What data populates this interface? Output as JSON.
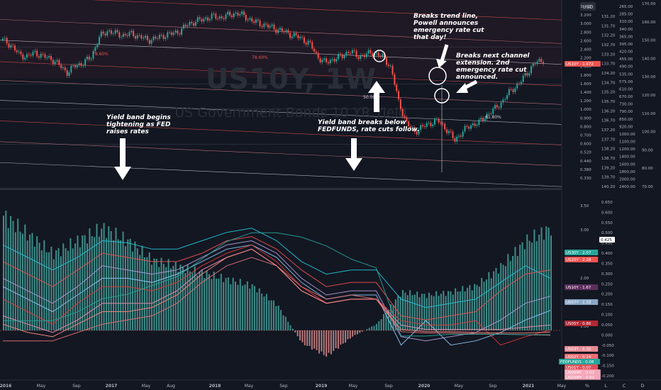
{
  "watermark": {
    "symbol": "US10Y, 1W",
    "description": "US Government Bonds 10 YR Yield"
  },
  "currency_label": "USD",
  "axis_buttons": [
    "%",
    "L",
    "C",
    "D"
  ],
  "colors": {
    "background": "#131722",
    "up": "#26a69a",
    "down": "#ef5350",
    "channel": "#ef5350",
    "fib": "#7e8597"
  },
  "annotations": {
    "band_tightening": [
      "Yield band begins",
      "tightening as FED",
      "raises rates"
    ],
    "band_breaks": [
      "Yield band breaks below",
      "FEDFUNDS, rate cuts follow."
    ],
    "trend_break": [
      "Breaks trend line,",
      "Powell announces",
      "emergency rate cut",
      "that day!"
    ],
    "channel_break": [
      "Breaks next channel",
      "extension. 2nd",
      "emergency rate cut",
      "announced."
    ]
  },
  "fib_labels": {
    "a": "78.60%",
    "b": "50.00%",
    "c": "61.80%"
  },
  "price_scale_upper": {
    "col1": [
      "3.400",
      "3.200",
      "3.000",
      "2.800",
      "2.600",
      "2.400",
      "2.200",
      "2.000",
      "1.800",
      "1.600",
      "1.400",
      "1.200",
      "1.000",
      "0.900",
      "0.800",
      "0.700",
      "0.600",
      "0.520",
      "0.440",
      "0.380",
      "0.330"
    ],
    "col2": [
      "131.20",
      "131.70",
      "132.20",
      "132.70",
      "133.20",
      "133.70",
      "134.20",
      "134.70",
      "135.20",
      "135.70",
      "136.20",
      "136.70",
      "137.20",
      "137.70",
      "138.20",
      "138.70",
      "139.20",
      "139.70",
      "140.20"
    ],
    "col3": [
      "265.00",
      "285.00",
      "310.00",
      "340.00",
      "365.00",
      "395.00",
      "420.00",
      "455.00",
      "490.00",
      "535.00",
      "575.00",
      "610.00",
      "670.00",
      "730.00",
      "790.00",
      "850.00",
      "920.00",
      "1000.00",
      "1100.00",
      "1200.00",
      "1400.00",
      "1600.00",
      "1800.00",
      "2000.00",
      "2400.00"
    ],
    "col4": [
      "170.00",
      "160.00",
      "150.00",
      "140.00",
      "130.00",
      "120.00",
      "110.00",
      "100.00",
      "90.00",
      "80.00",
      "70.00"
    ]
  },
  "price_scale_lower": {
    "col1": [
      "3.50",
      "3.00",
      "2.50",
      "2.00",
      "1.50",
      "1.00",
      "0.50"
    ],
    "col2": [
      "0.650",
      "0.600",
      "0.550",
      "0.500",
      "0.450",
      "0.400",
      "0.350",
      "0.300",
      "0.250",
      "0.200",
      "0.150",
      "0.100",
      "0.050",
      "0.000",
      "-0.050",
      "-0.100",
      "-0.150",
      "-0.200"
    ]
  },
  "time_labels": [
    "2016",
    "May",
    "Sep",
    "2017",
    "May",
    "Aug",
    "2018",
    "May",
    "Sep",
    "2019",
    "May",
    "Sep",
    "2020",
    "May",
    "Sep",
    "2021",
    "May"
  ],
  "badges": [
    {
      "text": "US10Y · 1.672",
      "color": "#ef5350"
    },
    {
      "text": "US30Y · 2.07",
      "color": "#26a69a"
    },
    {
      "text": "US20Y · 2.28",
      "color": "#ef5350"
    },
    {
      "text": "0.425",
      "color": "#ffffff"
    },
    {
      "text": "US10Y · 1.67",
      "color": "#5d2e5c"
    },
    {
      "text": "US07Y · 1.33",
      "color": "#8aa7c7"
    },
    {
      "text": "US05Y · 0.86",
      "color": "#b22833"
    },
    {
      "text": "US03Y · 0.30",
      "color": "#e58a92"
    },
    {
      "text": "US02Y · 0.14",
      "color": "#f06b73"
    },
    {
      "text": "FEDFUNDS · 0.08",
      "color": "#26a69a"
    },
    {
      "text": "US01Y · 0.07",
      "color": "#e04f5a"
    },
    {
      "text": "US06MY · 0.03",
      "color": "#f4a7b9"
    },
    {
      "text": "US03MY · 0.02",
      "color": "#f4a7b9"
    }
  ],
  "chart_data": [
    {
      "type": "candlestick",
      "title": "US10Y, 1W",
      "description": "US Government Bonds 10 YR Yield",
      "x_range": [
        "2016-01",
        "2021-04"
      ],
      "ylim": [
        0.33,
        3.4
      ],
      "log_scale": true,
      "weekly_close_samples": [
        2.2,
        2.05,
        1.8,
        1.75,
        1.85,
        1.75,
        1.7,
        1.55,
        1.4,
        1.55,
        1.6,
        1.75,
        2.3,
        2.5,
        2.4,
        2.35,
        2.4,
        2.3,
        2.2,
        2.25,
        2.35,
        2.4,
        2.5,
        2.75,
        2.85,
        2.95,
        3.05,
        3.0,
        3.1,
        3.2,
        3.05,
        2.85,
        2.75,
        2.65,
        2.55,
        2.45,
        2.35,
        2.25,
        2.1,
        1.75,
        1.6,
        1.7,
        1.75,
        1.9,
        1.75,
        1.8,
        1.85,
        1.75,
        1.55,
        0.95,
        0.7,
        0.62,
        0.66,
        0.7,
        0.72,
        0.64,
        0.55,
        0.62,
        0.68,
        0.7,
        0.78,
        0.85,
        0.95,
        1.1,
        1.2,
        1.4,
        1.6,
        1.67
      ],
      "last": 1.672
    },
    {
      "type": "line",
      "title": "Yield curve band",
      "x_range": [
        "2016-01",
        "2021-04"
      ],
      "ylim": [
        0,
        3.5
      ],
      "series": [
        {
          "name": "US30Y",
          "color": "#26c6da",
          "values": [
            2.9,
            2.6,
            2.3,
            2.6,
            3.0,
            2.95,
            2.8,
            2.8,
            3.0,
            3.2,
            3.3,
            3.0,
            2.5,
            2.2,
            2.3,
            2.3,
            1.6,
            1.4,
            1.5,
            1.6,
            2.0,
            2.4,
            2.1
          ]
        },
        {
          "name": "US20Y",
          "color": "#ef5350",
          "values": [
            2.5,
            2.2,
            1.9,
            2.3,
            2.7,
            2.6,
            2.5,
            2.5,
            2.7,
            3.0,
            3.1,
            2.8,
            2.3,
            1.9,
            2.0,
            2.0,
            1.2,
            1.1,
            1.2,
            1.3,
            1.8,
            2.2,
            2.3
          ]
        },
        {
          "name": "US10Y",
          "color": "#b39ddb",
          "values": [
            2.1,
            1.8,
            1.5,
            1.9,
            2.4,
            2.3,
            2.2,
            2.3,
            2.6,
            2.9,
            3.0,
            2.7,
            2.1,
            1.7,
            1.8,
            1.8,
            0.7,
            0.6,
            0.7,
            0.8,
            1.1,
            1.5,
            1.67
          ]
        },
        {
          "name": "US07Y",
          "color": "#90caf9",
          "values": [
            1.9,
            1.6,
            1.3,
            1.7,
            2.1,
            2.1,
            2.0,
            2.2,
            2.5,
            2.8,
            2.9,
            2.6,
            2.0,
            1.6,
            1.7,
            1.7,
            0.5,
            0.4,
            0.5,
            0.6,
            0.8,
            1.1,
            1.33
          ]
        },
        {
          "name": "US05Y",
          "color": "#e53935",
          "values": [
            1.6,
            1.3,
            1.0,
            1.5,
            1.9,
            1.9,
            1.8,
            2.0,
            2.4,
            2.7,
            2.9,
            2.5,
            1.9,
            1.5,
            1.6,
            1.6,
            0.4,
            0.3,
            0.3,
            0.4,
            0.5,
            0.7,
            0.86
          ]
        },
        {
          "name": "US03Y",
          "color": "#f48fb1",
          "values": [
            1.2,
            1.0,
            0.8,
            1.1,
            1.5,
            1.5,
            1.5,
            1.8,
            2.3,
            2.6,
            2.8,
            2.4,
            1.8,
            1.5,
            1.6,
            1.6,
            0.3,
            0.2,
            0.2,
            0.2,
            0.2,
            0.25,
            0.3
          ]
        },
        {
          "name": "US02Y",
          "color": "#ff8a80",
          "values": [
            1.0,
            0.8,
            0.7,
            1.0,
            1.3,
            1.3,
            1.4,
            1.7,
            2.2,
            2.6,
            2.8,
            2.4,
            1.8,
            1.5,
            1.6,
            1.6,
            0.2,
            0.15,
            0.15,
            0.13,
            0.12,
            0.12,
            0.14
          ]
        },
        {
          "name": "US01Y",
          "color": "#e57373",
          "values": [
            0.6,
            0.6,
            0.6,
            0.8,
            1.0,
            1.1,
            1.2,
            1.5,
            2.0,
            2.4,
            2.6,
            2.4,
            1.9,
            1.6,
            1.7,
            1.6,
            0.15,
            0.12,
            0.12,
            0.1,
            0.09,
            0.08,
            0.07
          ]
        },
        {
          "name": "FEDFUNDS",
          "color": "#26a69a",
          "values": [
            0.4,
            0.4,
            0.4,
            0.6,
            0.9,
            1.0,
            1.2,
            1.4,
            1.8,
            2.2,
            2.4,
            2.4,
            2.3,
            2.1,
            1.8,
            1.6,
            0.05,
            0.05,
            0.09,
            0.09,
            0.09,
            0.08,
            0.08
          ]
        }
      ],
      "histogram": {
        "name": "10Y-FEDFUNDS spread",
        "values": [
          1.8,
          1.5,
          1.2,
          1.4,
          1.6,
          1.4,
          1.1,
          1.0,
          0.9,
          0.8,
          0.7,
          0.4,
          -0.2,
          -0.4,
          -0.1,
          0.1,
          0.6,
          0.55,
          0.6,
          0.7,
          1.0,
          1.4,
          1.6
        ]
      },
      "ylim_right": [
        -0.2,
        0.65
      ],
      "last_right": 0.425
    }
  ]
}
